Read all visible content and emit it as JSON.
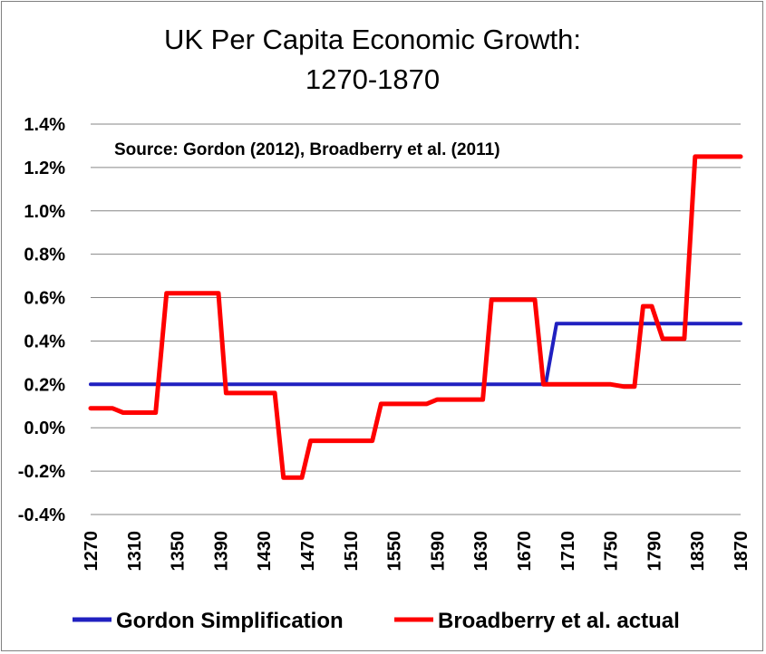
{
  "chart_data": {
    "type": "line",
    "title_lines": [
      "UK Per Capita Economic Growth:",
      "1270-1870"
    ],
    "annotation": "Source: Gordon (2012), Broadberry et al. (2011)",
    "x_ticks": [
      "1270",
      "1310",
      "1350",
      "1390",
      "1430",
      "1470",
      "1510",
      "1550",
      "1590",
      "1630",
      "1670",
      "1710",
      "1750",
      "1790",
      "1830",
      "1870"
    ],
    "y_ticks": [
      "-0.4%",
      "-0.2%",
      "0.0%",
      "0.2%",
      "0.4%",
      "0.6%",
      "0.8%",
      "1.0%",
      "1.2%",
      "1.4%"
    ],
    "xlim": [
      1270,
      1870
    ],
    "ylim": [
      -0.4,
      1.4
    ],
    "xlabel": "",
    "ylabel": "",
    "grid": "horizontal",
    "legend_position": "bottom",
    "series": [
      {
        "name": "Gordon Simplification",
        "color": "#2020C0",
        "x": [
          1270,
          1690,
          1700,
          1870
        ],
        "y": [
          0.2,
          0.2,
          0.48,
          0.48
        ]
      },
      {
        "name": "Broadberry et al. actual",
        "color": "#FF0000",
        "x": [
          1270,
          1290,
          1300,
          1330,
          1340,
          1388,
          1395,
          1440,
          1448,
          1465,
          1473,
          1530,
          1538,
          1580,
          1590,
          1632,
          1640,
          1680,
          1688,
          1750,
          1762,
          1772,
          1780,
          1788,
          1798,
          1818,
          1828,
          1870
        ],
        "y": [
          0.09,
          0.09,
          0.07,
          0.07,
          0.62,
          0.62,
          0.16,
          0.16,
          -0.23,
          -0.23,
          -0.06,
          -0.06,
          0.11,
          0.11,
          0.13,
          0.13,
          0.59,
          0.59,
          0.2,
          0.2,
          0.19,
          0.19,
          0.56,
          0.56,
          0.41,
          0.41,
          1.25,
          1.25
        ]
      }
    ]
  }
}
